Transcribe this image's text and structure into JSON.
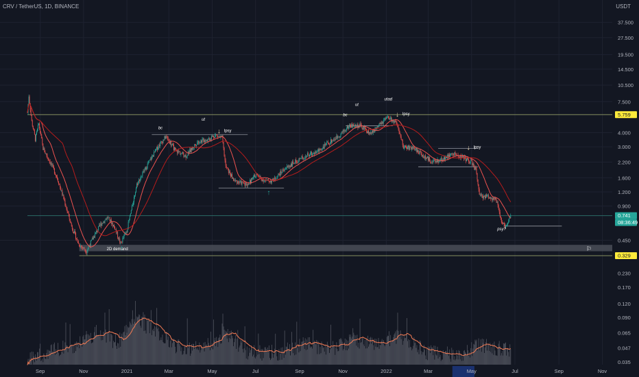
{
  "header": {
    "title": "CRV / TetherUS, 1D, BINANCE"
  },
  "colors": {
    "bg": "#131722",
    "up": "#26a69a",
    "down": "#ef5350",
    "grid": "#1e2230",
    "axis_text": "#b2b5be",
    "ma": "#ef5350",
    "ma_volume": "#f57c55",
    "volume": "#5d606b",
    "resistance_line": "#9aa46b",
    "support_line": "#2f7a73",
    "demand_zone": "#4a4d57",
    "badge_yellow": "#ffeb3b",
    "badge_teal": "#26a69a",
    "annotation": "#ffffff"
  },
  "chart_data": {
    "type": "candlestick",
    "price_axis": {
      "unit": "USDT",
      "scale": "log",
      "ticks": [
        "37.500",
        "27.500",
        "19.500",
        "14.500",
        "10.500",
        "7.500",
        "4.000",
        "3.000",
        "2.200",
        "1.600",
        "1.200",
        "0.900",
        "0.450"
      ],
      "tick_values": [
        37.5,
        27.5,
        19.5,
        14.5,
        10.5,
        7.5,
        4.0,
        3.0,
        2.2,
        1.6,
        1.2,
        0.9,
        0.45
      ],
      "badges": [
        {
          "label": "5.759",
          "value": 5.759,
          "style": "yellow"
        },
        {
          "label": "0.741",
          "value": 0.741,
          "style": "teal"
        },
        {
          "label": "08:36:49",
          "value": 0.741,
          "style": "teal-sub"
        },
        {
          "label": "0.329",
          "value": 0.329,
          "style": "yellow"
        }
      ]
    },
    "volume_axis": {
      "ticks": [
        "0.230",
        "0.170",
        "0.120",
        "0.090",
        "0.065",
        "0.047",
        "0.035"
      ],
      "tick_values": [
        0.23,
        0.17,
        0.12,
        0.09,
        0.065,
        0.047,
        0.035
      ]
    },
    "time_axis": {
      "ticks": [
        "Sep",
        "Nov",
        "2021",
        "Mar",
        "May",
        "Jul",
        "Sep",
        "Nov",
        "2022",
        "Mar",
        "May",
        "Jul",
        "Sep",
        "Nov"
      ],
      "tick_dates": [
        "2020-09-01",
        "2020-11-01",
        "2021-01-01",
        "2021-03-01",
        "2021-05-01",
        "2021-07-01",
        "2021-09-01",
        "2021-11-01",
        "2022-01-01",
        "2022-03-01",
        "2022-05-01",
        "2022-07-01",
        "2022-09-01",
        "2022-11-01"
      ],
      "start": "2020-08-14",
      "end": "2022-11-15",
      "highlight_range": [
        "2022-04-04",
        "2022-05-05"
      ]
    },
    "price_path": [
      [
        "2020-08-14",
        6.0
      ],
      [
        "2020-08-16",
        8.5
      ],
      [
        "2020-08-20",
        5.0
      ],
      [
        "2020-08-25",
        3.5
      ],
      [
        "2020-08-30",
        4.8
      ],
      [
        "2020-09-05",
        2.9
      ],
      [
        "2020-09-15",
        2.2
      ],
      [
        "2020-09-25",
        1.6
      ],
      [
        "2020-10-05",
        1.0
      ],
      [
        "2020-10-15",
        0.6
      ],
      [
        "2020-10-25",
        0.42
      ],
      [
        "2020-11-05",
        0.36
      ],
      [
        "2020-11-15",
        0.48
      ],
      [
        "2020-11-25",
        0.62
      ],
      [
        "2020-12-05",
        0.72
      ],
      [
        "2020-12-15",
        0.58
      ],
      [
        "2020-12-23",
        0.42
      ],
      [
        "2021-01-01",
        0.55
      ],
      [
        "2021-01-15",
        1.4
      ],
      [
        "2021-02-01",
        2.2
      ],
      [
        "2021-02-15",
        3.1
      ],
      [
        "2021-02-25",
        3.7
      ],
      [
        "2021-03-10",
        2.8
      ],
      [
        "2021-03-25",
        2.5
      ],
      [
        "2021-04-10",
        3.3
      ],
      [
        "2021-04-25",
        3.5
      ],
      [
        "2021-05-05",
        3.8
      ],
      [
        "2021-05-15",
        3.6
      ],
      [
        "2021-05-20",
        2.0
      ],
      [
        "2021-06-01",
        1.5
      ],
      [
        "2021-06-20",
        1.4
      ],
      [
        "2021-07-01",
        1.7
      ],
      [
        "2021-07-15",
        1.5
      ],
      [
        "2021-07-25",
        1.5
      ],
      [
        "2021-08-10",
        1.9
      ],
      [
        "2021-08-25",
        2.2
      ],
      [
        "2021-09-10",
        2.5
      ],
      [
        "2021-09-25",
        2.7
      ],
      [
        "2021-10-10",
        3.2
      ],
      [
        "2021-10-25",
        3.7
      ],
      [
        "2021-11-10",
        4.6
      ],
      [
        "2021-11-25",
        4.6
      ],
      [
        "2021-12-10",
        3.9
      ],
      [
        "2021-12-20",
        4.5
      ],
      [
        "2022-01-01",
        5.3
      ],
      [
        "2022-01-05",
        5.4
      ],
      [
        "2022-01-15",
        4.8
      ],
      [
        "2022-01-25",
        3.0
      ],
      [
        "2022-02-10",
        2.9
      ],
      [
        "2022-02-25",
        2.4
      ],
      [
        "2022-03-10",
        2.2
      ],
      [
        "2022-03-25",
        2.4
      ],
      [
        "2022-04-05",
        2.6
      ],
      [
        "2022-04-20",
        2.4
      ],
      [
        "2022-05-01",
        2.2
      ],
      [
        "2022-05-08",
        1.8
      ],
      [
        "2022-05-12",
        1.1
      ],
      [
        "2022-05-25",
        1.1
      ],
      [
        "2022-06-05",
        1.0
      ],
      [
        "2022-06-13",
        0.62
      ],
      [
        "2022-06-18",
        0.6
      ],
      [
        "2022-06-25",
        0.741
      ]
    ],
    "volume_path": [
      [
        "2020-08-14",
        0.035
      ],
      [
        "2020-09-10",
        0.042
      ],
      [
        "2020-10-20",
        0.05
      ],
      [
        "2020-11-20",
        0.065
      ],
      [
        "2020-12-20",
        0.052
      ],
      [
        "2021-01-10",
        0.09
      ],
      [
        "2021-02-10",
        0.065
      ],
      [
        "2021-03-20",
        0.045
      ],
      [
        "2021-05-01",
        0.05
      ],
      [
        "2021-05-20",
        0.065
      ],
      [
        "2021-06-20",
        0.042
      ],
      [
        "2021-08-01",
        0.042
      ],
      [
        "2021-09-10",
        0.05
      ],
      [
        "2021-10-15",
        0.045
      ],
      [
        "2021-11-15",
        0.055
      ],
      [
        "2021-12-15",
        0.052
      ],
      [
        "2022-01-20",
        0.06
      ],
      [
        "2022-03-01",
        0.042
      ],
      [
        "2022-04-15",
        0.04
      ],
      [
        "2022-05-15",
        0.05
      ],
      [
        "2022-06-15",
        0.045
      ],
      [
        "2022-06-25",
        0.043
      ]
    ],
    "levels": [
      {
        "name": "resistance",
        "value": 5.759,
        "from": "2020-08-14",
        "to": "2022-11-15"
      },
      {
        "name": "current",
        "value": 0.741,
        "from": "2020-08-14",
        "to": "2022-11-15"
      },
      {
        "name": "demand-floor",
        "value": 0.329,
        "from": "2020-10-26",
        "to": "2022-11-15"
      }
    ],
    "ranges": [
      {
        "value": 3.85,
        "from": "2021-02-05",
        "to": "2021-06-20"
      },
      {
        "value": 1.3,
        "from": "2021-05-10",
        "to": "2021-08-10"
      },
      {
        "value": 4.6,
        "from": "2021-11-05",
        "to": "2022-01-10"
      },
      {
        "value": 2.9,
        "from": "2022-03-15",
        "to": "2022-05-10"
      },
      {
        "value": 2.0,
        "from": "2022-02-15",
        "to": "2022-05-10"
      },
      {
        "value": 0.6,
        "from": "2022-06-15",
        "to": "2022-09-05"
      }
    ],
    "demand_zone": {
      "label": "2D demand",
      "top": 0.41,
      "bottom": 0.36,
      "from": "2020-10-26",
      "to": "2022-11-15"
    },
    "annotations": [
      {
        "text": "bc",
        "date": "2021-02-18",
        "value": 4.3
      },
      {
        "text": "ut",
        "date": "2021-04-20",
        "value": 5.1
      },
      {
        "text": "lpsy",
        "date": "2021-05-12",
        "value": 4.1,
        "arrow": "down"
      },
      {
        "text": "bc",
        "date": "2021-11-05",
        "value": 5.6
      },
      {
        "text": "ut",
        "date": "2021-11-22",
        "value": 6.9
      },
      {
        "text": "utad",
        "date": "2022-01-02",
        "value": 7.7
      },
      {
        "text": "lpsy",
        "date": "2022-01-18",
        "value": 5.8,
        "arrow": "down"
      },
      {
        "text": "lpsy",
        "date": "2022-04-28",
        "value": 2.95,
        "arrow": "down"
      },
      {
        "text": "psy?",
        "date": "2022-06-10",
        "value": 0.55
      },
      {
        "text": "",
        "date": "2021-07-20",
        "value": 1.2,
        "arrow": "up"
      },
      {
        "text": "",
        "date": "2020-12-25",
        "value": 0.39,
        "arrow": "up"
      }
    ]
  }
}
